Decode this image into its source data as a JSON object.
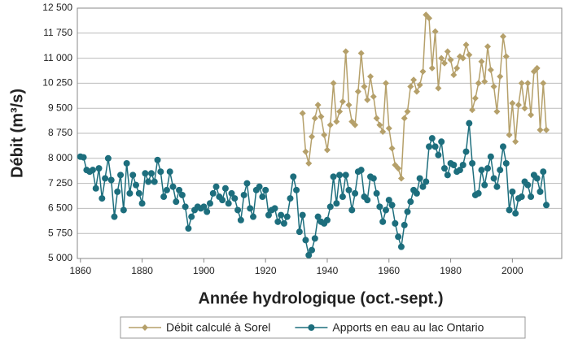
{
  "chart_data": {
    "type": "line",
    "y_label": "Débit (m³/s)",
    "x_label": "Année hydrologique (oct.-sept.)",
    "xlim": [
      1859,
      2016
    ],
    "xticks": [
      1860,
      1880,
      1900,
      1920,
      1940,
      1960,
      1980,
      2000
    ],
    "ylim": [
      5000,
      12500
    ],
    "yticks": [
      {
        "value": 5000,
        "label": "5 000"
      },
      {
        "value": 5750,
        "label": "5 750"
      },
      {
        "value": 6500,
        "label": "6 500"
      },
      {
        "value": 7250,
        "label": "7 250"
      },
      {
        "value": 8000,
        "label": "8 000"
      },
      {
        "value": 8750,
        "label": "8 750"
      },
      {
        "value": 9500,
        "label": "9 500"
      },
      {
        "value": 10250,
        "label": "10 250"
      },
      {
        "value": 11000,
        "label": "11 000"
      },
      {
        "value": 11750,
        "label": "11 750"
      },
      {
        "value": 12500,
        "label": "12 500"
      }
    ],
    "grid": true,
    "legend": "bottom",
    "x": [
      1860,
      1861,
      1862,
      1863,
      1864,
      1865,
      1866,
      1867,
      1868,
      1869,
      1870,
      1871,
      1872,
      1873,
      1874,
      1875,
      1876,
      1877,
      1878,
      1879,
      1880,
      1881,
      1882,
      1883,
      1884,
      1885,
      1886,
      1887,
      1888,
      1889,
      1890,
      1891,
      1892,
      1893,
      1894,
      1895,
      1896,
      1897,
      1898,
      1899,
      1900,
      1901,
      1902,
      1903,
      1904,
      1905,
      1906,
      1907,
      1908,
      1909,
      1910,
      1911,
      1912,
      1913,
      1914,
      1915,
      1916,
      1917,
      1918,
      1919,
      1920,
      1921,
      1922,
      1923,
      1924,
      1925,
      1926,
      1927,
      1928,
      1929,
      1930,
      1931,
      1932,
      1933,
      1934,
      1935,
      1936,
      1937,
      1938,
      1939,
      1940,
      1941,
      1942,
      1943,
      1944,
      1945,
      1946,
      1947,
      1948,
      1949,
      1950,
      1951,
      1952,
      1953,
      1954,
      1955,
      1956,
      1957,
      1958,
      1959,
      1960,
      1961,
      1962,
      1963,
      1964,
      1965,
      1966,
      1967,
      1968,
      1969,
      1970,
      1971,
      1972,
      1973,
      1974,
      1975,
      1976,
      1977,
      1978,
      1979,
      1980,
      1981,
      1982,
      1983,
      1984,
      1985,
      1986,
      1987,
      1988,
      1989,
      1990,
      1991,
      1992,
      1993,
      1994,
      1995,
      1996,
      1997,
      1998,
      1999,
      2000,
      2001,
      2002,
      2003,
      2004,
      2005,
      2006,
      2007,
      2008,
      2009,
      2010,
      2011
    ],
    "series": [
      {
        "name": "Débit calculé à Sorel",
        "color": "#b5a06a",
        "marker": "diamond",
        "values": [
          null,
          null,
          null,
          null,
          null,
          null,
          null,
          null,
          null,
          null,
          null,
          null,
          null,
          null,
          null,
          null,
          null,
          null,
          null,
          null,
          null,
          null,
          null,
          null,
          null,
          null,
          null,
          null,
          null,
          null,
          null,
          null,
          null,
          null,
          null,
          null,
          null,
          null,
          null,
          null,
          null,
          null,
          null,
          null,
          null,
          null,
          null,
          null,
          null,
          null,
          null,
          null,
          null,
          null,
          null,
          null,
          null,
          null,
          null,
          null,
          null,
          null,
          null,
          null,
          null,
          null,
          null,
          null,
          null,
          null,
          null,
          null,
          9350,
          8200,
          7850,
          8650,
          9200,
          9600,
          9250,
          8700,
          8250,
          9000,
          10250,
          9100,
          9400,
          9700,
          11200,
          9600,
          9100,
          9000,
          10000,
          11150,
          10150,
          9750,
          10450,
          9850,
          9200,
          9000,
          8800,
          10250,
          8900,
          8300,
          7800,
          7700,
          7400,
          9200,
          9400,
          10150,
          10350,
          10000,
          10200,
          10600,
          12300,
          12200,
          10700,
          11800,
          10100,
          11000,
          10850,
          11200,
          10950,
          10500,
          10700,
          11050,
          11000,
          11400,
          11100,
          9450,
          9800,
          10250,
          10900,
          10300,
          11350,
          10650,
          10150,
          9400,
          10450,
          11650,
          11050,
          8700,
          9650,
          8500,
          9600,
          10250,
          9500,
          10250,
          9300,
          10600,
          10700,
          8850,
          10250,
          8850
        ]
      },
      {
        "name": "Apports en eau au lac Ontario",
        "color": "#1d6e7d",
        "marker": "circle",
        "values": [
          8050,
          8030,
          7650,
          7600,
          7650,
          7100,
          7700,
          6800,
          7400,
          8000,
          7350,
          6250,
          7000,
          7500,
          6450,
          7850,
          6950,
          7500,
          7200,
          6950,
          6650,
          7550,
          7300,
          7550,
          7300,
          7950,
          7600,
          6850,
          7050,
          7600,
          7150,
          6700,
          7050,
          6900,
          6550,
          5900,
          6250,
          6450,
          6550,
          6500,
          6550,
          6400,
          6650,
          6950,
          7150,
          6850,
          6750,
          7100,
          6650,
          6950,
          6800,
          6450,
          6150,
          6900,
          7250,
          6500,
          6250,
          7050,
          7150,
          6850,
          7050,
          6300,
          6450,
          6500,
          6100,
          6300,
          6050,
          6250,
          6800,
          7450,
          7050,
          5800,
          6300,
          5550,
          5100,
          5250,
          5600,
          6250,
          6100,
          6050,
          6150,
          6550,
          7450,
          6650,
          7500,
          6850,
          7500,
          7050,
          6450,
          6950,
          7600,
          7650,
          6850,
          6750,
          7450,
          7400,
          6950,
          6550,
          6100,
          6450,
          6750,
          6600,
          6050,
          5650,
          5350,
          6000,
          6400,
          6700,
          7050,
          6950,
          7400,
          7150,
          7300,
          8350,
          8600,
          8350,
          8100,
          8500,
          7700,
          7500,
          7850,
          7800,
          7600,
          7650,
          7800,
          8200,
          9050,
          7850,
          6900,
          6950,
          7650,
          7200,
          7700,
          8050,
          7400,
          7150,
          7650,
          8350,
          7850,
          6450,
          7000,
          6350,
          6800,
          6850,
          7300,
          7200,
          6850,
          7500,
          7400,
          7000,
          7600,
          6600
        ]
      }
    ]
  }
}
